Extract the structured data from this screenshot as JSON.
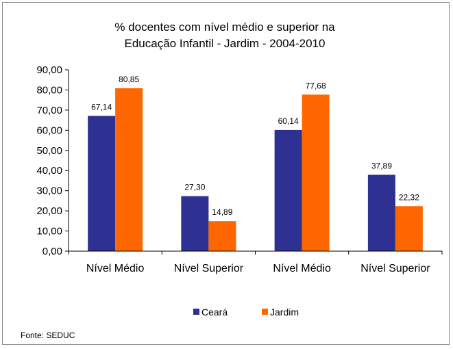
{
  "chart_data": {
    "type": "bar",
    "title_line1": "% docentes com nível médio e superior na",
    "title_line2": "Educação Infantil - Jardim - 2004-2010",
    "categories": [
      "Nível Médio",
      "Nível Superior",
      "Nível Médio",
      "Nível Superior"
    ],
    "series": [
      {
        "name": "Ceará",
        "color": "#2e3192",
        "values": [
          67.14,
          27.3,
          60.14,
          37.89
        ],
        "labels": [
          "67,14",
          "27,30",
          "60,14",
          "37,89"
        ]
      },
      {
        "name": "Jardim",
        "color": "#ff6600",
        "values": [
          80.85,
          14.89,
          77.68,
          22.32
        ],
        "labels": [
          "80,85",
          "14,89",
          "77,68",
          "22,32"
        ]
      }
    ],
    "ylim": [
      0,
      90
    ],
    "yticks": [
      "0,00",
      "10,00",
      "20,00",
      "30,00",
      "40,00",
      "50,00",
      "60,00",
      "70,00",
      "80,00",
      "90,00"
    ],
    "grid": false,
    "legend_position": "bottom"
  },
  "source_note": "Fonte: SEDUC"
}
